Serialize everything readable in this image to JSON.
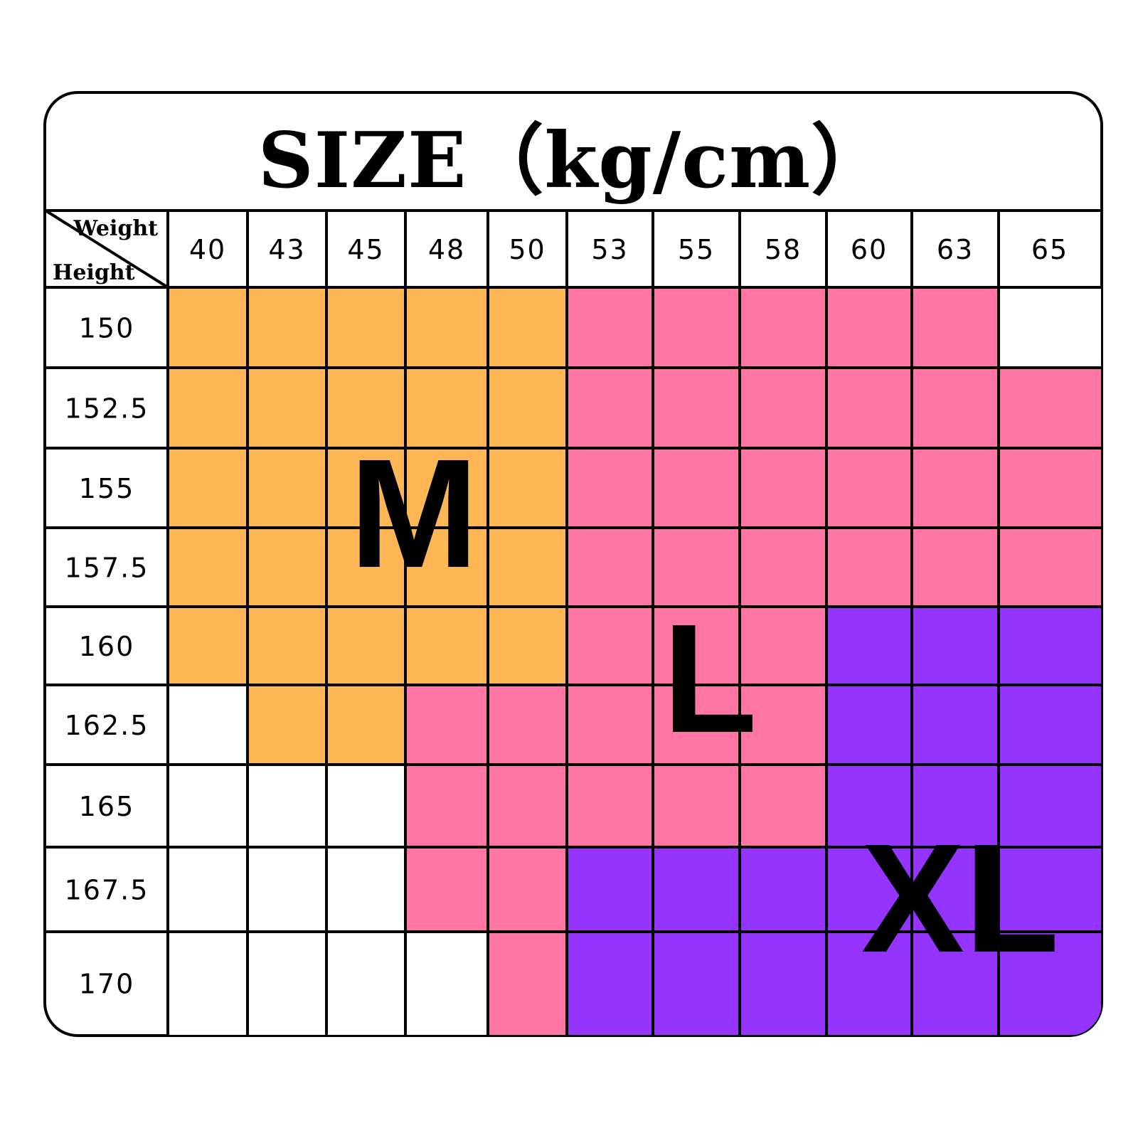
{
  "chart_data": {
    "type": "heatmap",
    "title": "SIZE（kg/cm）",
    "xlabel": "Weight",
    "ylabel": "Height",
    "x": [
      "40",
      "43",
      "45",
      "48",
      "50",
      "53",
      "55",
      "58",
      "60",
      "63",
      "65"
    ],
    "y": [
      "150",
      "152.5",
      "155",
      "157.5",
      "160",
      "162.5",
      "165",
      "167.5",
      "170"
    ],
    "cells": [
      [
        "M",
        "M",
        "M",
        "M",
        "M",
        "L",
        "L",
        "L",
        "L",
        "L",
        ""
      ],
      [
        "M",
        "M",
        "M",
        "M",
        "M",
        "L",
        "L",
        "L",
        "L",
        "L",
        "L"
      ],
      [
        "M",
        "M",
        "M",
        "M",
        "M",
        "L",
        "L",
        "L",
        "L",
        "L",
        "L"
      ],
      [
        "M",
        "M",
        "M",
        "M",
        "M",
        "L",
        "L",
        "L",
        "L",
        "L",
        "L"
      ],
      [
        "M",
        "M",
        "M",
        "M",
        "M",
        "L",
        "L",
        "L",
        "XL",
        "XL",
        "XL"
      ],
      [
        "",
        "M",
        "M",
        "L",
        "L",
        "L",
        "L",
        "L",
        "XL",
        "XL",
        "XL"
      ],
      [
        "",
        "",
        "",
        "L",
        "L",
        "L",
        "L",
        "L",
        "XL",
        "XL",
        "XL"
      ],
      [
        "",
        "",
        "",
        "L",
        "L",
        "XL",
        "XL",
        "XL",
        "XL",
        "XL",
        "XL"
      ],
      [
        "",
        "",
        "",
        "",
        "L",
        "XL",
        "XL",
        "XL",
        "XL",
        "XL",
        "XL"
      ]
    ],
    "sizes": [
      {
        "name": "M",
        "color": "#FFB655"
      },
      {
        "name": "L",
        "color": "#FF75A4"
      },
      {
        "name": "XL",
        "color": "#9533FF"
      }
    ],
    "empty_color": "#FFFFFF"
  }
}
